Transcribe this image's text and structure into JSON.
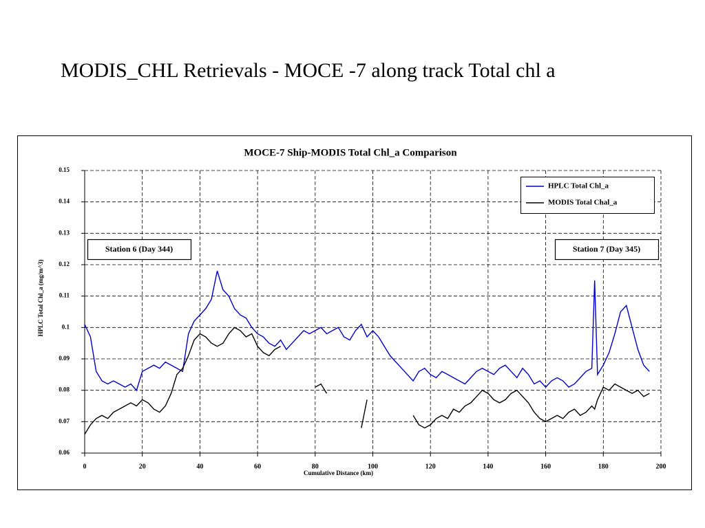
{
  "slide": {
    "title": "MODIS_CHL Retrievals - MOCE -7 along track Total chl a"
  },
  "chart_data": {
    "type": "line",
    "title": "MOCE-7 Ship-MODIS Total Chl_a Comparison",
    "x_label": "Cumulative Distance (km)",
    "y_label": "HPLC Total Chl_a (mg/m^3)",
    "annotations": [
      "Station 6 (Day 344)",
      "Station 7 (Day 345)"
    ],
    "xlim": [
      0,
      200
    ],
    "xticks": [
      0,
      20,
      40,
      60,
      80,
      100,
      120,
      140,
      160,
      180,
      200
    ],
    "ylim": [
      0.06,
      0.15
    ],
    "yticks": [
      0.06,
      0.07,
      0.08,
      0.09,
      0.1,
      0.11,
      0.12,
      0.13,
      0.14,
      0.15
    ],
    "grid": true,
    "legend": "upper right",
    "x": [
      0,
      2,
      4,
      6,
      8,
      10,
      12,
      14,
      16,
      18,
      20,
      22,
      24,
      26,
      28,
      30,
      32,
      34,
      36,
      38,
      40,
      42,
      44,
      46,
      48,
      50,
      52,
      54,
      56,
      58,
      60,
      62,
      64,
      66,
      68,
      70,
      72,
      74,
      76,
      78,
      80,
      82,
      84,
      86,
      88,
      90,
      92,
      94,
      96,
      98,
      100,
      102,
      104,
      106,
      108,
      110,
      112,
      114,
      116,
      118,
      120,
      122,
      124,
      126,
      128,
      130,
      132,
      134,
      136,
      138,
      140,
      142,
      144,
      146,
      148,
      150,
      152,
      154,
      156,
      158,
      160,
      162,
      164,
      166,
      168,
      170,
      172,
      174,
      176,
      177,
      178,
      180,
      182,
      184,
      186,
      188,
      190,
      192,
      194,
      196
    ],
    "series": [
      {
        "name": "HPLC Total Chl_a",
        "color": "#0000cc",
        "values": [
          0.101,
          0.097,
          0.086,
          0.083,
          0.082,
          0.083,
          0.082,
          0.081,
          0.082,
          0.08,
          0.086,
          0.087,
          0.088,
          0.087,
          0.089,
          0.088,
          0.087,
          0.086,
          0.098,
          0.102,
          0.104,
          0.106,
          0.109,
          0.118,
          0.112,
          0.11,
          0.106,
          0.104,
          0.103,
          0.1,
          0.098,
          0.097,
          0.095,
          0.094,
          0.096,
          0.093,
          0.095,
          0.097,
          0.099,
          0.098,
          0.099,
          0.1,
          0.098,
          0.099,
          0.1,
          0.097,
          0.096,
          0.099,
          0.101,
          0.097,
          0.099,
          0.097,
          0.094,
          0.091,
          0.089,
          0.087,
          0.085,
          0.083,
          0.086,
          0.087,
          0.085,
          0.084,
          0.086,
          0.085,
          0.084,
          0.083,
          0.082,
          0.084,
          0.086,
          0.087,
          0.086,
          0.085,
          0.087,
          0.088,
          0.086,
          0.084,
          0.087,
          0.085,
          0.082,
          0.083,
          0.081,
          0.083,
          0.084,
          0.083,
          0.081,
          0.082,
          0.084,
          0.086,
          0.087,
          0.115,
          0.085,
          0.088,
          0.092,
          0.098,
          0.105,
          0.107,
          0.1,
          0.093,
          0.088,
          0.086
        ]
      },
      {
        "name": "MODIS Total Chal_a",
        "color": "#000000",
        "values": [
          0.066,
          0.069,
          0.071,
          0.072,
          0.071,
          0.073,
          0.074,
          0.075,
          0.076,
          0.075,
          0.077,
          0.076,
          0.074,
          0.073,
          0.075,
          0.079,
          0.085,
          0.087,
          0.091,
          0.096,
          0.098,
          0.097,
          0.095,
          0.094,
          0.095,
          0.098,
          0.1,
          0.099,
          0.097,
          0.098,
          0.094,
          0.092,
          0.091,
          0.093,
          0.094,
          null,
          null,
          null,
          null,
          null,
          0.081,
          0.082,
          0.079,
          null,
          null,
          null,
          null,
          null,
          0.068,
          0.077,
          null,
          null,
          null,
          null,
          null,
          null,
          null,
          0.072,
          0.069,
          0.068,
          0.069,
          0.071,
          0.072,
          0.071,
          0.074,
          0.073,
          0.075,
          0.076,
          0.078,
          0.08,
          0.079,
          0.077,
          0.076,
          0.077,
          0.079,
          0.08,
          0.078,
          0.076,
          0.073,
          0.071,
          0.07,
          0.071,
          0.072,
          0.071,
          0.073,
          0.074,
          0.072,
          0.073,
          0.075,
          0.074,
          0.077,
          0.081,
          0.08,
          0.082,
          0.081,
          0.08,
          0.079,
          0.08,
          0.078,
          0.079
        ]
      }
    ]
  }
}
